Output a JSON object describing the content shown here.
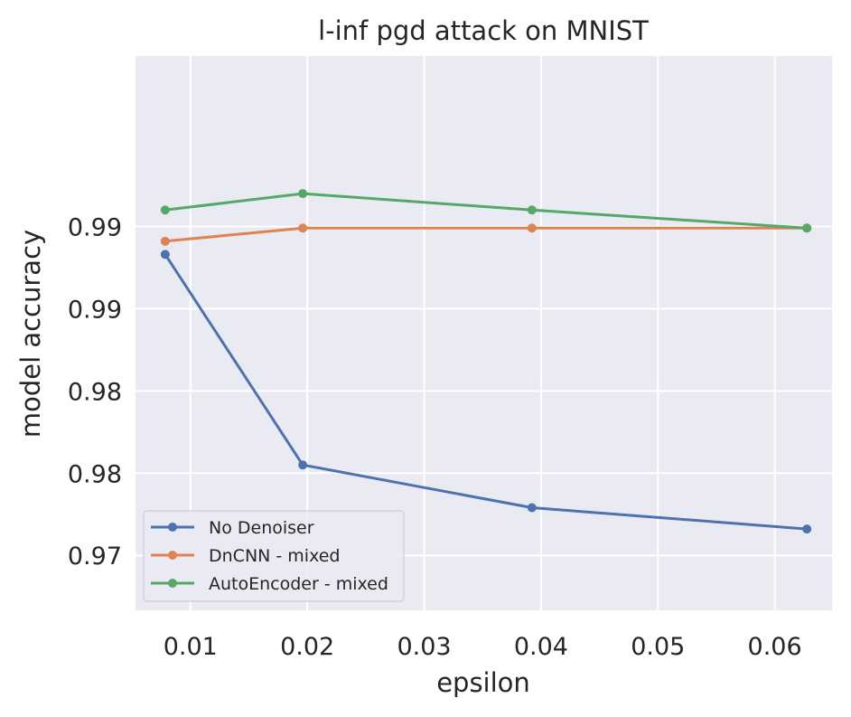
{
  "chart_data": {
    "type": "line",
    "title": "l-inf pgd attack on MNIST",
    "xlabel": "epsilon",
    "ylabel": "model accuracy",
    "x": [
      0.00784,
      0.01961,
      0.03922,
      0.06275
    ],
    "xlim": [
      0.0053,
      0.0649
    ],
    "ylim": [
      0.96366,
      0.99736
    ],
    "xticks": [
      0.01,
      0.02,
      0.03,
      0.04,
      0.05,
      0.06
    ],
    "xtick_labels": [
      "0.01",
      "0.02",
      "0.03",
      "0.04",
      "0.05",
      "0.06"
    ],
    "yticks": [
      0.967,
      0.972,
      0.977,
      0.982,
      0.987
    ],
    "ytick_labels": [
      "0.97",
      "0.98",
      "0.98",
      "0.99",
      "0.99"
    ],
    "series": [
      {
        "name": "No Denoiser",
        "color": "#4c72b0",
        "values": [
          0.9853,
          0.9725,
          0.9699,
          0.9686
        ]
      },
      {
        "name": "DnCNN - mixed",
        "color": "#dd8452",
        "values": [
          0.9861,
          0.9869,
          0.9869,
          0.9869
        ]
      },
      {
        "name": "AutoEncoder - mixed",
        "color": "#55a868",
        "values": [
          0.988,
          0.989,
          0.988,
          0.9869
        ]
      }
    ],
    "grid": true,
    "legend": "lower-left",
    "background": "#eaeaf2"
  }
}
